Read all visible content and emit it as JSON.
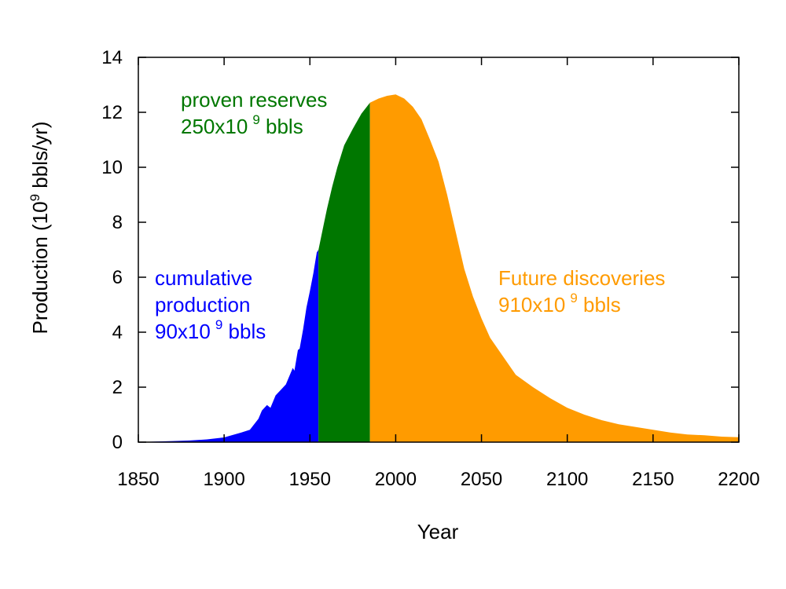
{
  "chart_data": {
    "type": "area",
    "title": "",
    "xlabel": "Year",
    "ylabel": {
      "prefix": "Production (10",
      "exponent": "9",
      "suffix": " bbls/yr)"
    },
    "xlim": [
      1850,
      2200
    ],
    "ylim": [
      0,
      14
    ],
    "x_ticks": [
      1850,
      1900,
      1950,
      2000,
      2050,
      2100,
      2150,
      2200
    ],
    "y_ticks": [
      0,
      2,
      4,
      6,
      8,
      10,
      12,
      14
    ],
    "series": [
      {
        "name": "cumulative production",
        "color": "#0000ff",
        "x": [
          1850,
          1860,
          1870,
          1880,
          1890,
          1900,
          1910,
          1915,
          1920,
          1922,
          1925,
          1927,
          1930,
          1933,
          1936,
          1938,
          1940,
          1941,
          1943,
          1944,
          1946,
          1948,
          1950,
          1952,
          1954,
          1955
        ],
        "values": [
          0.0,
          0.02,
          0.04,
          0.06,
          0.1,
          0.17,
          0.35,
          0.45,
          0.85,
          1.15,
          1.35,
          1.25,
          1.7,
          1.9,
          2.1,
          2.4,
          2.7,
          2.6,
          3.35,
          3.4,
          4.1,
          4.9,
          5.5,
          6.15,
          6.9,
          7.0
        ]
      },
      {
        "name": "proven reserves",
        "color": "#007700",
        "x": [
          1955,
          1958,
          1960,
          1963,
          1966,
          1970,
          1975,
          1980,
          1985
        ],
        "values": [
          7.0,
          7.9,
          8.5,
          9.3,
          10.0,
          10.8,
          11.4,
          11.95,
          12.35
        ]
      },
      {
        "name": "Future discoveries",
        "color": "#ff9b00",
        "x": [
          1985,
          1990,
          1995,
          2000,
          2005,
          2010,
          2015,
          2020,
          2025,
          2030,
          2040,
          2045,
          2050,
          2055,
          2060,
          2070,
          2080,
          2090,
          2100,
          2110,
          2120,
          2130,
          2140,
          2150,
          2160,
          2170,
          2180,
          2190,
          2200
        ],
        "values": [
          12.35,
          12.5,
          12.6,
          12.65,
          12.5,
          12.2,
          11.75,
          11.0,
          10.2,
          9.0,
          6.3,
          5.3,
          4.5,
          3.8,
          3.35,
          2.45,
          2.0,
          1.6,
          1.25,
          1.0,
          0.8,
          0.65,
          0.55,
          0.45,
          0.35,
          0.28,
          0.25,
          0.2,
          0.18
        ]
      }
    ],
    "annotations": [
      {
        "series": "cumulative production",
        "lines": [
          "cumulative",
          "production"
        ],
        "amount": "90x10",
        "exponent": "9",
        "unit": " bbls"
      },
      {
        "series": "proven reserves",
        "lines": [
          "proven reserves"
        ],
        "amount": "250x10",
        "exponent": "9",
        "unit": " bbls"
      },
      {
        "series": "Future discoveries",
        "lines": [
          "Future discoveries"
        ],
        "amount": "910x10",
        "exponent": "9",
        "unit": " bbls"
      }
    ]
  }
}
